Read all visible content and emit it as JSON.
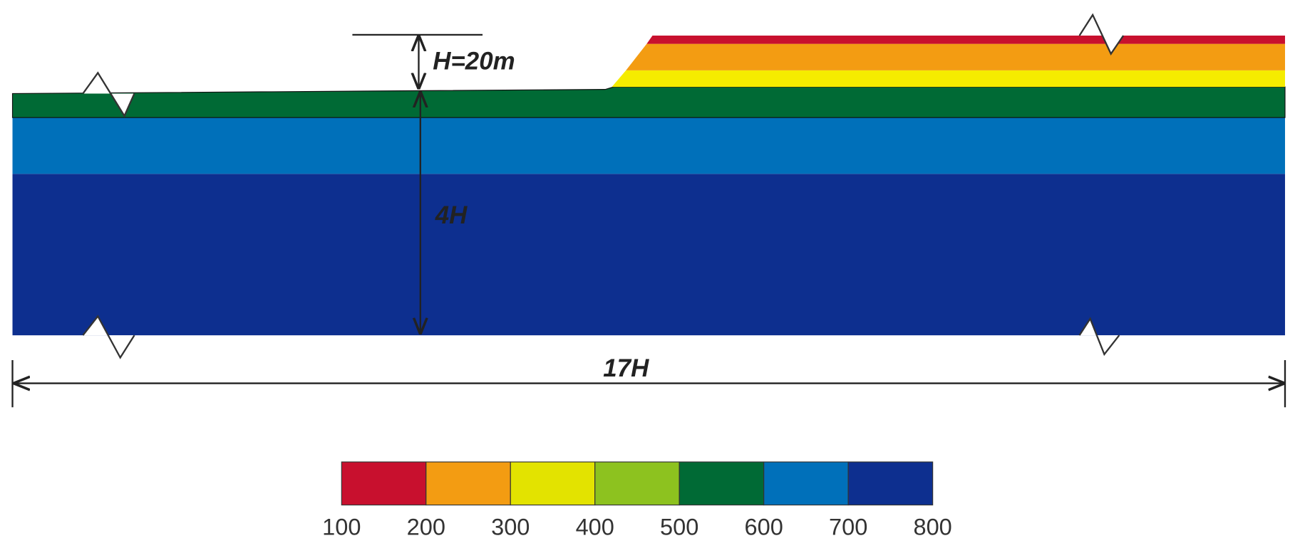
{
  "annotations": {
    "height": "H=20m",
    "depth": "4H",
    "length": "17H"
  },
  "legend": {
    "ticks": [
      100,
      200,
      300,
      400,
      500,
      600,
      700,
      800
    ],
    "colors": [
      "#c8102e",
      "#f39c12",
      "#e3e300",
      "#8dc21f",
      "#006a35",
      "#0070ba",
      "#0d2f8f"
    ]
  }
}
